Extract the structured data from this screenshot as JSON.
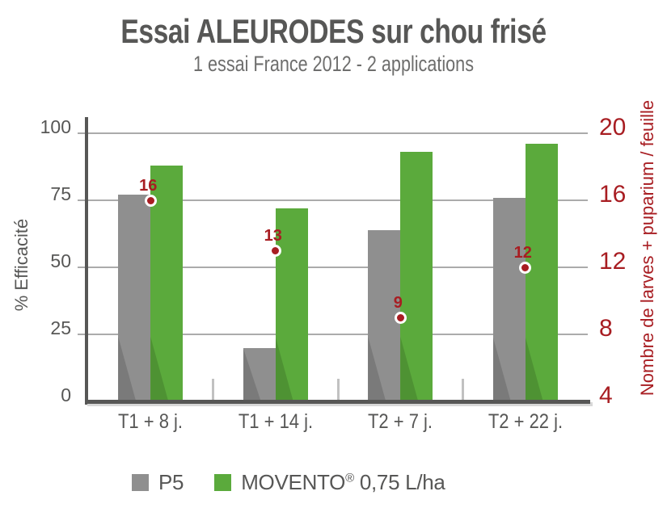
{
  "title": "Essai ALEURODES sur chou frisé",
  "subtitle": "1 essai France 2012 - 2 applications",
  "colors": {
    "text_gray": "#575756",
    "subtitle_gray": "#6E6E6D",
    "p5_gray": "#8F8F8F",
    "movento_green": "#5BAA3C",
    "red": "#A81D22",
    "grid": "#ABABAB",
    "axis": "#575756",
    "axis_shadow": "#D8D8D8",
    "separator": "#C1C1C1"
  },
  "chart_data": {
    "type": "bar",
    "categories": [
      "T1 + 8 j.",
      "T1 + 14 j.",
      "T2 + 7 j.",
      "T2 + 22 j."
    ],
    "series": [
      {
        "name": "P5",
        "axis": "left",
        "color": "#8F8F8F",
        "values": [
          77,
          20,
          64,
          76
        ]
      },
      {
        "name": "MOVENTO® 0,75 L/ha",
        "axis": "left",
        "color": "#5BAA3C",
        "values": [
          88,
          72,
          93,
          96
        ]
      }
    ],
    "point_series": {
      "name": "Nombre de larves + puparium / feuille",
      "type": "point",
      "axis": "right",
      "color": "#A81D22",
      "values": [
        16,
        13,
        9,
        12
      ]
    },
    "left_axis": {
      "label": "% Efficacité",
      "min": 0,
      "max": 100,
      "ticks": [
        0,
        25,
        50,
        75,
        100
      ]
    },
    "right_axis": {
      "label": "Nombre de larves + puparium / feuille",
      "min": 4,
      "max": 20,
      "ticks": [
        4,
        8,
        12,
        16,
        20
      ]
    },
    "grid": true,
    "legend_position": "bottom"
  },
  "legend": {
    "items": [
      {
        "label": "P5",
        "color": "#8F8F8F"
      },
      {
        "label": "MOVENTO® 0,75 L/ha",
        "label_main": "MOVENTO",
        "label_sup": "®",
        "label_rest": " 0,75 L/ha",
        "color": "#5BAA3C"
      }
    ]
  }
}
